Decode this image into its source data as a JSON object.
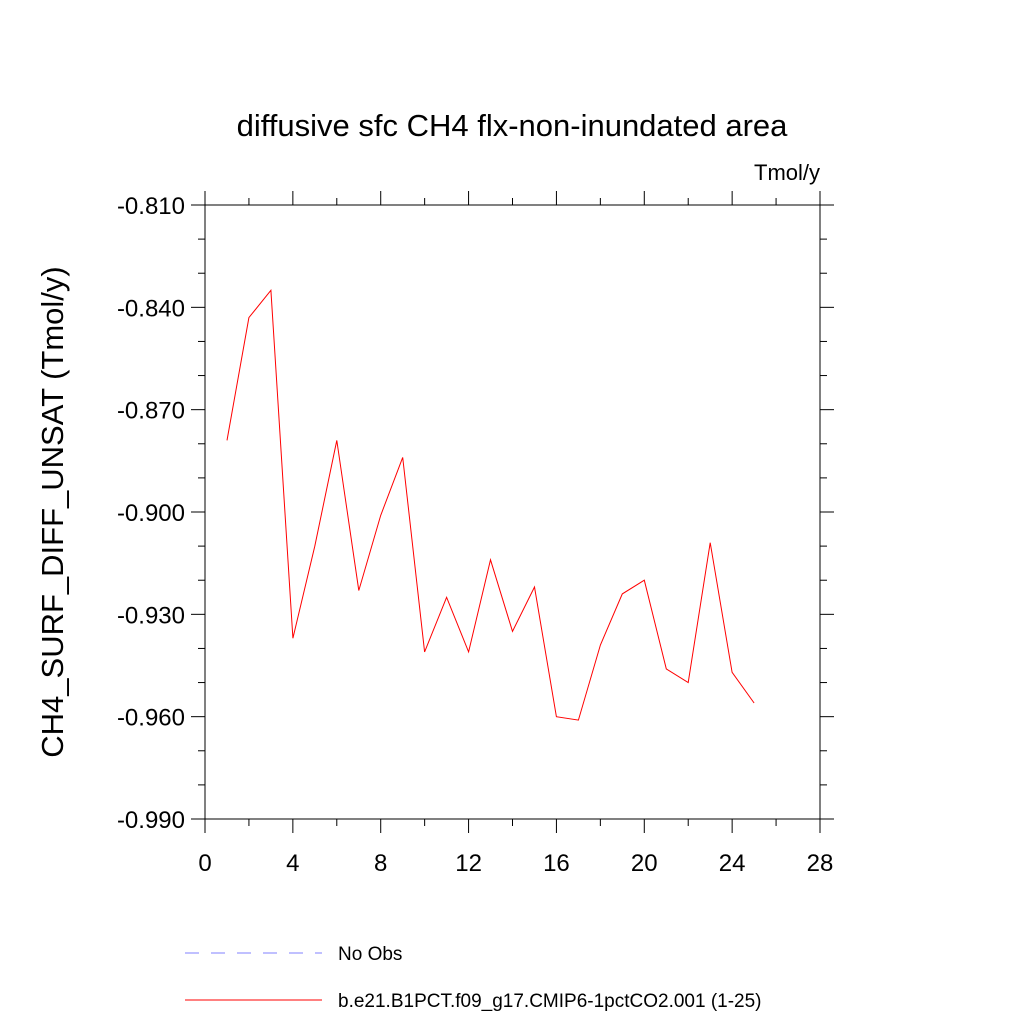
{
  "chart_data": {
    "type": "line",
    "title": "diffusive sfc CH4 flx-non-inundated area",
    "units_label": "Tmol/y",
    "ylabel": "CH4_SURF_DIFF_UNSAT  (Tmol/y)",
    "xlabel": "",
    "xlim": [
      0,
      28
    ],
    "ylim": [
      -0.99,
      -0.81
    ],
    "x_ticks": [
      0,
      4,
      8,
      12,
      16,
      20,
      24,
      28
    ],
    "x_tick_labels": [
      "0",
      "4",
      "8",
      "12",
      "16",
      "20",
      "24",
      "28"
    ],
    "y_ticks": [
      -0.81,
      -0.84,
      -0.87,
      -0.9,
      -0.93,
      -0.96,
      -0.99
    ],
    "y_tick_labels": [
      "-0.810",
      "-0.840",
      "-0.870",
      "-0.900",
      "-0.930",
      "-0.960",
      "-0.990"
    ],
    "grid": false,
    "series": [
      {
        "name": "b.e21.B1PCT.f09_g17.CMIP6-1pctCO2.001 (1-25)",
        "color": "#ff0000",
        "style": "solid",
        "x": [
          1,
          2,
          3,
          4,
          5,
          6,
          7,
          8,
          9,
          10,
          11,
          12,
          13,
          14,
          15,
          16,
          17,
          18,
          19,
          20,
          21,
          22,
          23,
          24,
          25
        ],
        "y": [
          -0.879,
          -0.843,
          -0.835,
          -0.937,
          -0.91,
          -0.879,
          -0.923,
          -0.901,
          -0.884,
          -0.941,
          -0.925,
          -0.941,
          -0.914,
          -0.935,
          -0.922,
          -0.96,
          -0.961,
          -0.939,
          -0.924,
          -0.92,
          -0.946,
          -0.95,
          -0.909,
          -0.947,
          -0.956
        ]
      }
    ],
    "legend": {
      "placement": "bottom",
      "entries": [
        {
          "label": "No Obs",
          "color": "#8080ff",
          "style": "dashed"
        },
        {
          "label": "b.e21.B1PCT.f09_g17.CMIP6-1pctCO2.001 (1-25)",
          "color": "#ff0000",
          "style": "solid"
        }
      ]
    }
  }
}
